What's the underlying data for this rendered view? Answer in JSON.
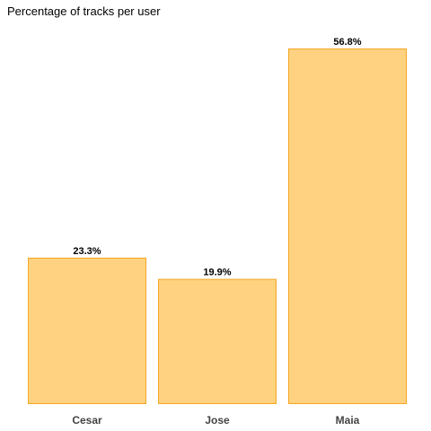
{
  "chart_data": {
    "type": "bar",
    "title": "Percentage of tracks per user",
    "xlabel": "",
    "ylabel": "",
    "categories": [
      "Cesar",
      "Jose",
      "Maia"
    ],
    "values": [
      23.3,
      19.9,
      56.8
    ],
    "value_labels": [
      "23.3%",
      "19.9%",
      "56.8%"
    ],
    "ylim": [
      0,
      56.8
    ],
    "grid": false,
    "legend": "none",
    "colors": {
      "bar_fill": "#FED280",
      "bar_stroke": "#F5A623",
      "category_text": "#444444",
      "value_text": "#000000"
    }
  }
}
